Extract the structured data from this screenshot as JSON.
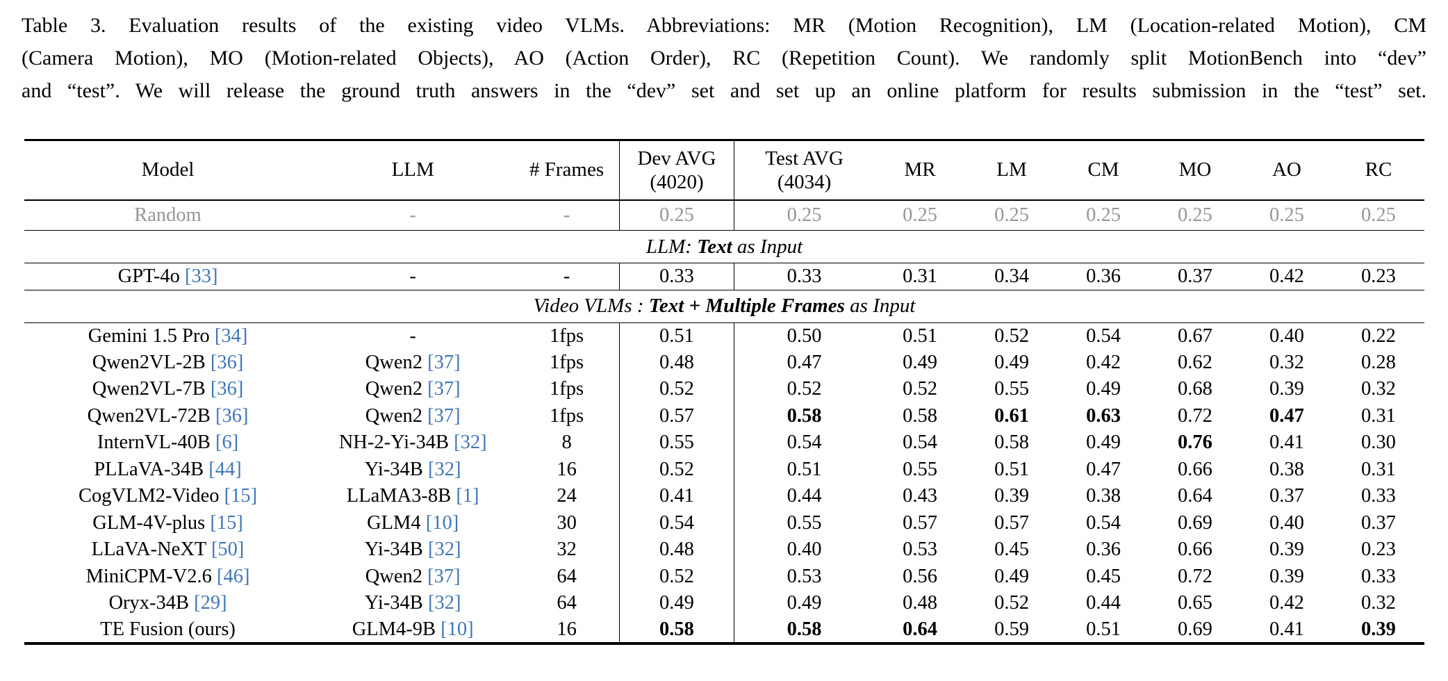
{
  "caption": {
    "lines": [
      "Table 3.  Evaluation results of the existing video VLMs.  Abbreviations: MR (Motion Recognition), LM (Location-related Motion), CM",
      "(Camera Motion), MO (Motion-related Objects), AO (Action Order), RC (Repetition Count).  We randomly split MotionBench into “dev”",
      "and “test”.  We will release the ground truth answers in the “dev” set and set up an online platform for results submission in the “test” set."
    ]
  },
  "colors": {
    "citation_blue": "#4076b9",
    "muted_gray": "#969696",
    "text_black": "#000000"
  },
  "table": {
    "headers": {
      "model": "Model",
      "llm": "LLM",
      "frames": "# Frames",
      "dev_line1": "Dev AVG",
      "dev_line2": "(4020)",
      "test_line1": "Test AVG",
      "test_line2": "(4034)",
      "metrics": [
        "MR",
        "LM",
        "CM",
        "MO",
        "AO",
        "RC"
      ]
    },
    "baseline_row": {
      "model": "Random",
      "model_ref": null,
      "llm": "-",
      "llm_ref": null,
      "frames": "-",
      "dev": "0.25",
      "test": "0.25",
      "mr": "0.25",
      "lm": "0.25",
      "cm": "0.25",
      "mo": "0.25",
      "ao": "0.25",
      "rc": "0.25",
      "bold": []
    },
    "sections": [
      {
        "title_prefix": "LLM: ",
        "title_bold": "Text",
        "title_suffix": " as Input",
        "rows": [
          {
            "model": "GPT-4o",
            "model_ref": "33",
            "llm": "-",
            "llm_ref": null,
            "frames": "-",
            "dev": "0.33",
            "test": "0.33",
            "mr": "0.31",
            "lm": "0.34",
            "cm": "0.36",
            "mo": "0.37",
            "ao": "0.42",
            "rc": "0.23",
            "bold": []
          }
        ]
      },
      {
        "title_prefix": "Video VLMs : ",
        "title_bold": "Text + Multiple Frames",
        "title_suffix": " as Input",
        "rows": [
          {
            "model": "Gemini 1.5 Pro",
            "model_ref": "34",
            "llm": "-",
            "llm_ref": null,
            "frames": "1fps",
            "dev": "0.51",
            "test": "0.50",
            "mr": "0.51",
            "lm": "0.52",
            "cm": "0.54",
            "mo": "0.67",
            "ao": "0.40",
            "rc": "0.22",
            "bold": []
          },
          {
            "model": "Qwen2VL-2B",
            "model_ref": "36",
            "llm": "Qwen2",
            "llm_ref": "37",
            "frames": "1fps",
            "dev": "0.48",
            "test": "0.47",
            "mr": "0.49",
            "lm": "0.49",
            "cm": "0.42",
            "mo": "0.62",
            "ao": "0.32",
            "rc": "0.28",
            "bold": []
          },
          {
            "model": "Qwen2VL-7B",
            "model_ref": "36",
            "llm": "Qwen2",
            "llm_ref": "37",
            "frames": "1fps",
            "dev": "0.52",
            "test": "0.52",
            "mr": "0.52",
            "lm": "0.55",
            "cm": "0.49",
            "mo": "0.68",
            "ao": "0.39",
            "rc": "0.32",
            "bold": []
          },
          {
            "model": "Qwen2VL-72B",
            "model_ref": "36",
            "llm": "Qwen2",
            "llm_ref": "37",
            "frames": "1fps",
            "dev": "0.57",
            "test": "0.58",
            "mr": "0.58",
            "lm": "0.61",
            "cm": "0.63",
            "mo": "0.72",
            "ao": "0.47",
            "rc": "0.31",
            "bold": [
              "test",
              "lm",
              "cm",
              "ao"
            ]
          },
          {
            "model": "InternVL-40B",
            "model_ref": "6",
            "llm": "NH-2-Yi-34B",
            "llm_ref": "32",
            "frames": "8",
            "dev": "0.55",
            "test": "0.54",
            "mr": "0.54",
            "lm": "0.58",
            "cm": "0.49",
            "mo": "0.76",
            "ao": "0.41",
            "rc": "0.30",
            "bold": [
              "mo"
            ]
          },
          {
            "model": "PLLaVA-34B",
            "model_ref": "44",
            "llm": "Yi-34B",
            "llm_ref": "32",
            "frames": "16",
            "dev": "0.52",
            "test": "0.51",
            "mr": "0.55",
            "lm": "0.51",
            "cm": "0.47",
            "mo": "0.66",
            "ao": "0.38",
            "rc": "0.31",
            "bold": []
          },
          {
            "model": "CogVLM2-Video",
            "model_ref": "15",
            "llm": "LLaMA3-8B",
            "llm_ref": "1",
            "frames": "24",
            "dev": "0.41",
            "test": "0.44",
            "mr": "0.43",
            "lm": "0.39",
            "cm": "0.38",
            "mo": "0.64",
            "ao": "0.37",
            "rc": "0.33",
            "bold": []
          },
          {
            "model": "GLM-4V-plus",
            "model_ref": "15",
            "llm": "GLM4",
            "llm_ref": "10",
            "frames": "30",
            "dev": "0.54",
            "test": "0.55",
            "mr": "0.57",
            "lm": "0.57",
            "cm": "0.54",
            "mo": "0.69",
            "ao": "0.40",
            "rc": "0.37",
            "bold": []
          },
          {
            "model": "LLaVA-NeXT",
            "model_ref": "50",
            "llm": "Yi-34B",
            "llm_ref": "32",
            "frames": "32",
            "dev": "0.48",
            "test": "0.40",
            "mr": "0.53",
            "lm": "0.45",
            "cm": "0.36",
            "mo": "0.66",
            "ao": "0.39",
            "rc": "0.23",
            "bold": []
          },
          {
            "model": "MiniCPM-V2.6",
            "model_ref": "46",
            "llm": "Qwen2",
            "llm_ref": "37",
            "frames": "64",
            "dev": "0.52",
            "test": "0.53",
            "mr": "0.56",
            "lm": "0.49",
            "cm": "0.45",
            "mo": "0.72",
            "ao": "0.39",
            "rc": "0.33",
            "bold": []
          },
          {
            "model": "Oryx-34B",
            "model_ref": "29",
            "llm": "Yi-34B",
            "llm_ref": "32",
            "frames": "64",
            "dev": "0.49",
            "test": "0.49",
            "mr": "0.48",
            "lm": "0.52",
            "cm": "0.44",
            "mo": "0.65",
            "ao": "0.42",
            "rc": "0.32",
            "bold": []
          },
          {
            "model": "TE Fusion (ours)",
            "model_ref": null,
            "llm": "GLM4-9B",
            "llm_ref": "10",
            "frames": "16",
            "dev": "0.58",
            "test": "0.58",
            "mr": "0.64",
            "lm": "0.59",
            "cm": "0.51",
            "mo": "0.69",
            "ao": "0.41",
            "rc": "0.39",
            "bold": [
              "dev",
              "test",
              "mr",
              "rc"
            ]
          }
        ]
      }
    ]
  }
}
